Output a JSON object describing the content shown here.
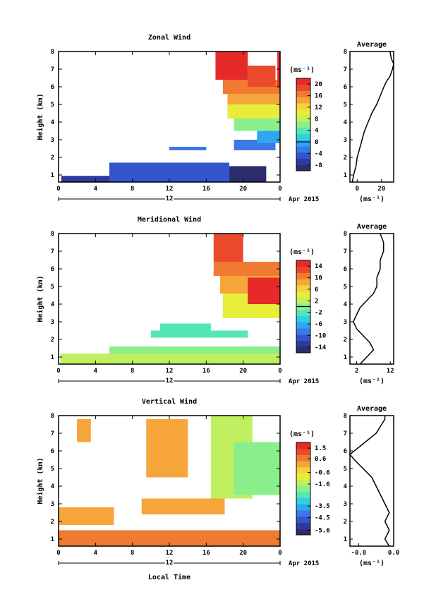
{
  "panels": [
    {
      "title": "Zonal Wind",
      "ylabel": "Height (km)",
      "yticks": [
        "1",
        "2",
        "3",
        "4",
        "5",
        "6",
        "7",
        "8"
      ],
      "xticks": [
        "0",
        "4",
        "8",
        "12",
        "16",
        "20",
        "0"
      ],
      "day_label": "12",
      "date_label": "Apr 2015",
      "unit_label": "(ms⁻¹)",
      "cbar_ticks": [
        "20",
        "16",
        "12",
        "8",
        "4",
        "0",
        "-4",
        "-8"
      ],
      "avg_title": "Average",
      "avg_xticks": [
        "0",
        "20"
      ],
      "avg_xlabel": "(ms⁻¹)"
    },
    {
      "title": "Meridional Wind",
      "ylabel": "Height (km)",
      "yticks": [
        "1",
        "2",
        "3",
        "4",
        "5",
        "6",
        "7",
        "8"
      ],
      "xticks": [
        "0",
        "4",
        "8",
        "12",
        "16",
        "20",
        "0"
      ],
      "day_label": "12",
      "date_label": "Apr 2015",
      "unit_label": "(ms⁻¹)",
      "cbar_ticks": [
        "14",
        "10",
        "6",
        "2",
        "-2",
        "-6",
        "-10",
        "-14"
      ],
      "avg_title": "Average",
      "avg_xticks": [
        "2",
        "12"
      ],
      "avg_xlabel": "(ms⁻¹)"
    },
    {
      "title": "Vertical Wind",
      "ylabel": "Height (km)",
      "yticks": [
        "1",
        "2",
        "3",
        "4",
        "5",
        "6",
        "7",
        "8"
      ],
      "xticks": [
        "0",
        "4",
        "8",
        "12",
        "16",
        "20",
        "0"
      ],
      "day_label": "12",
      "date_label": "Apr 2015",
      "unit_label": "(ms⁻¹)",
      "cbar_ticks": [
        "1.5",
        "0.6",
        "-0.6",
        "-1.6",
        "-3.5",
        "-4.5",
        "-5.6"
      ],
      "avg_title": "Average",
      "avg_xticks": [
        "-0.8",
        "0.0"
      ],
      "avg_xlabel": "(ms⁻¹)",
      "xlabel": "Local Time"
    }
  ],
  "colormap": [
    "#2b2b6e",
    "#2f3a9c",
    "#3355cc",
    "#3a79e6",
    "#2fa6ef",
    "#2fd0e0",
    "#55e6b6",
    "#8aef8a",
    "#c0ef60",
    "#e6ee3a",
    "#f6d23a",
    "#f6a53a",
    "#f07a32",
    "#ea4a2a",
    "#e62a2a"
  ],
  "chart_data": [
    {
      "type": "heatmap",
      "title": "Zonal Wind",
      "xlabel": "",
      "ylabel": "Height (km)",
      "xlim": [
        0,
        24
      ],
      "ylim": [
        0.6,
        8
      ],
      "colorbar": {
        "ticks": [
          20,
          16,
          12,
          8,
          4,
          0,
          -4,
          -8
        ],
        "range": [
          -10,
          22
        ],
        "unit": "(ms⁻¹)"
      },
      "regions": [
        {
          "x": [
            0.3,
            5.5
          ],
          "y": [
            0.6,
            0.95
          ],
          "value": -6
        },
        {
          "x": [
            5.5,
            18.5
          ],
          "y": [
            0.6,
            1.7
          ],
          "value": -5
        },
        {
          "x": [
            18.5,
            22.5
          ],
          "y": [
            0.6,
            1.5
          ],
          "value": -8
        },
        {
          "x": [
            12,
            16
          ],
          "y": [
            2.4,
            2.6
          ],
          "value": -2
        },
        {
          "x": [
            19,
            23.5
          ],
          "y": [
            2.4,
            3.0
          ],
          "value": -3
        },
        {
          "x": [
            21.5,
            24
          ],
          "y": [
            2.8,
            3.5
          ],
          "value": 0
        },
        {
          "x": [
            19,
            24
          ],
          "y": [
            3.5,
            4.6
          ],
          "value": 6
        },
        {
          "x": [
            18.3,
            24
          ],
          "y": [
            4.2,
            5.0
          ],
          "value": 10
        },
        {
          "x": [
            18.3,
            24
          ],
          "y": [
            5.0,
            5.6
          ],
          "value": 14
        },
        {
          "x": [
            17.8,
            24
          ],
          "y": [
            5.6,
            6.4
          ],
          "value": 17
        },
        {
          "x": [
            17.0,
            20.5
          ],
          "y": [
            6.4,
            8.0
          ],
          "value": 20
        },
        {
          "x": [
            20.5,
            23.5
          ],
          "y": [
            6.0,
            7.2
          ],
          "value": 19
        },
        {
          "x": [
            23.7,
            24
          ],
          "y": [
            6.0,
            8.0
          ],
          "value": 20
        }
      ],
      "average": {
        "height": [
          0.6,
          1.0,
          1.5,
          2.0,
          2.5,
          3.0,
          3.5,
          4.0,
          4.5,
          5.0,
          5.5,
          6.0,
          6.3,
          6.6,
          7.0,
          7.3,
          7.6,
          8.0
        ],
        "value": [
          -4,
          -3,
          -1,
          0,
          2,
          4,
          6,
          9,
          12,
          16,
          19,
          22,
          24,
          27,
          29,
          30,
          28,
          27
        ]
      },
      "avg_xlim": [
        -6,
        30
      ]
    },
    {
      "type": "heatmap",
      "title": "Meridional Wind",
      "xlabel": "",
      "ylabel": "Height (km)",
      "xlim": [
        0,
        24
      ],
      "ylim": [
        0.6,
        8
      ],
      "colorbar": {
        "ticks": [
          14,
          10,
          6,
          2,
          -2,
          -6,
          -10,
          -14
        ],
        "range": [
          -16,
          16
        ],
        "unit": "(ms⁻¹)"
      },
      "regions": [
        {
          "x": [
            0.2,
            24
          ],
          "y": [
            0.6,
            1.2
          ],
          "value": 2
        },
        {
          "x": [
            5.5,
            24
          ],
          "y": [
            1.2,
            1.6
          ],
          "value": 1
        },
        {
          "x": [
            10,
            20.5
          ],
          "y": [
            2.1,
            2.5
          ],
          "value": -3
        },
        {
          "x": [
            11,
            16.5
          ],
          "y": [
            2.5,
            2.9
          ],
          "value": -2
        },
        {
          "x": [
            17.8,
            24
          ],
          "y": [
            3.2,
            4.6
          ],
          "value": 4
        },
        {
          "x": [
            17.5,
            24
          ],
          "y": [
            4.6,
            5.6
          ],
          "value": 8
        },
        {
          "x": [
            16.8,
            24
          ],
          "y": [
            5.6,
            6.4
          ],
          "value": 11
        },
        {
          "x": [
            16.8,
            20
          ],
          "y": [
            6.4,
            8.0
          ],
          "value": 13
        },
        {
          "x": [
            20.5,
            24
          ],
          "y": [
            4.0,
            5.5
          ],
          "value": 14
        }
      ],
      "average": {
        "height": [
          0.6,
          1.0,
          1.4,
          1.8,
          2.2,
          2.6,
          3.0,
          3.4,
          3.8,
          4.2,
          4.6,
          5.0,
          5.5,
          6.0,
          6.5,
          7.0,
          7.5,
          8.0
        ],
        "value": [
          3,
          5,
          7,
          6,
          4,
          2,
          1,
          2,
          3,
          5,
          7,
          8,
          8,
          9,
          9,
          10,
          10,
          9
        ]
      },
      "avg_xlim": [
        0,
        13
      ]
    },
    {
      "type": "heatmap",
      "title": "Vertical Wind",
      "xlabel": "Local Time",
      "ylabel": "Height (km)",
      "xlim": [
        0,
        24
      ],
      "ylim": [
        0.6,
        8
      ],
      "colorbar": {
        "ticks": [
          1.5,
          0.6,
          -0.6,
          -1.6,
          -3.5,
          -4.5,
          -5.6
        ],
        "range": [
          -6,
          2
        ],
        "unit": "(ms⁻¹)"
      },
      "regions": [
        {
          "x": [
            0,
            24
          ],
          "y": [
            0.6,
            1.5
          ],
          "value": 0.4
        },
        {
          "x": [
            0,
            6
          ],
          "y": [
            1.8,
            2.8
          ],
          "value": 0.3
        },
        {
          "x": [
            9,
            18
          ],
          "y": [
            2.4,
            3.3
          ],
          "value": 0.3
        },
        {
          "x": [
            16.5,
            21
          ],
          "y": [
            3.3,
            8.0
          ],
          "value": -1.6
        },
        {
          "x": [
            19,
            24
          ],
          "y": [
            3.5,
            6.5
          ],
          "value": -2.2
        },
        {
          "x": [
            2,
            3.5
          ],
          "y": [
            6.5,
            7.8
          ],
          "value": 0.1
        },
        {
          "x": [
            9.5,
            14
          ],
          "y": [
            4.5,
            7.8
          ],
          "value": 0.0
        }
      ],
      "average": {
        "height": [
          0.6,
          1.0,
          1.5,
          2.0,
          2.5,
          3.0,
          3.5,
          4.0,
          4.5,
          5.0,
          5.5,
          5.8,
          6.2,
          6.6,
          7.0,
          7.4,
          7.8,
          8.0
        ],
        "value": [
          -0.1,
          -0.2,
          -0.1,
          -0.2,
          -0.1,
          -0.2,
          -0.3,
          -0.4,
          -0.5,
          -0.7,
          -0.9,
          -1.0,
          -0.8,
          -0.6,
          -0.4,
          -0.3,
          -0.2,
          -0.2
        ]
      },
      "avg_xlim": [
        -1.0,
        0.0
      ]
    }
  ]
}
